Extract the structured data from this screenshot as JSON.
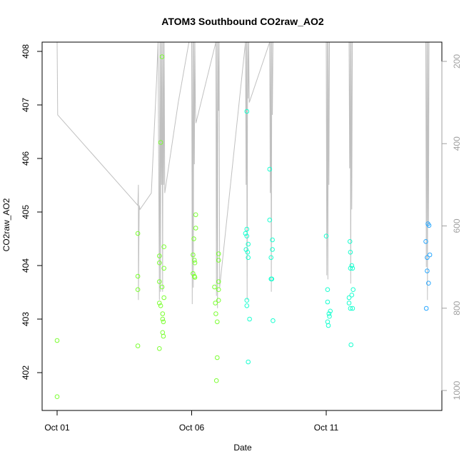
{
  "chart_data": {
    "type": "scatter",
    "title": "ATOM3 Southbound CO2raw_AO2",
    "xlabel": "Date",
    "ylabel": "CO2raw_AO2",
    "x_range_days": [
      0,
      14.0
    ],
    "ylim": [
      401.2,
      408.15
    ],
    "x_ticks": [
      {
        "day": 0,
        "label": "Oct 01"
      },
      {
        "day": 5,
        "label": "Oct 06"
      },
      {
        "day": 10,
        "label": "Oct 11"
      }
    ],
    "y_ticks": [
      402,
      403,
      404,
      405,
      406,
      407,
      408
    ],
    "y2_range": [
      143,
      1060
    ],
    "y2_ticks": [
      200,
      400,
      600,
      800,
      1000
    ],
    "grid": false,
    "colors": {
      "points_early": "#7cff33",
      "points_mid": "#1affd0",
      "points_late": "#2aa8ff",
      "pressure_trace": "#c0c0c0",
      "axis": "#000000",
      "right_axis": "#a0a0a0"
    },
    "points": [
      {
        "x": 0.0,
        "y": 402.6
      },
      {
        "x": 0.0,
        "y": 401.55
      },
      {
        "x": 3.0,
        "y": 404.6
      },
      {
        "x": 3.0,
        "y": 403.8
      },
      {
        "x": 3.0,
        "y": 403.55
      },
      {
        "x": 3.0,
        "y": 402.5
      },
      {
        "x": 3.8,
        "y": 404.18
      },
      {
        "x": 3.8,
        "y": 404.05
      },
      {
        "x": 3.8,
        "y": 403.7
      },
      {
        "x": 3.8,
        "y": 403.3
      },
      {
        "x": 3.8,
        "y": 402.45
      },
      {
        "x": 3.85,
        "y": 406.3
      },
      {
        "x": 3.85,
        "y": 403.25
      },
      {
        "x": 3.9,
        "y": 407.9
      },
      {
        "x": 3.9,
        "y": 403.6
      },
      {
        "x": 3.92,
        "y": 403.1
      },
      {
        "x": 3.92,
        "y": 403.0
      },
      {
        "x": 3.92,
        "y": 402.75
      },
      {
        "x": 3.95,
        "y": 402.95
      },
      {
        "x": 3.95,
        "y": 402.68
      },
      {
        "x": 3.97,
        "y": 404.35
      },
      {
        "x": 3.97,
        "y": 403.95
      },
      {
        "x": 3.97,
        "y": 403.4
      },
      {
        "x": 5.05,
        "y": 404.2
      },
      {
        "x": 5.05,
        "y": 403.85
      },
      {
        "x": 5.08,
        "y": 404.5
      },
      {
        "x": 5.1,
        "y": 404.1
      },
      {
        "x": 5.1,
        "y": 403.8
      },
      {
        "x": 5.12,
        "y": 404.05
      },
      {
        "x": 5.12,
        "y": 403.78
      },
      {
        "x": 5.15,
        "y": 404.95
      },
      {
        "x": 5.15,
        "y": 404.7
      },
      {
        "x": 5.85,
        "y": 403.6
      },
      {
        "x": 5.88,
        "y": 403.3
      },
      {
        "x": 5.9,
        "y": 403.1
      },
      {
        "x": 5.92,
        "y": 401.85
      },
      {
        "x": 5.95,
        "y": 402.28
      },
      {
        "x": 5.95,
        "y": 402.95
      },
      {
        "x": 6.0,
        "y": 404.1
      },
      {
        "x": 6.0,
        "y": 404.22
      },
      {
        "x": 6.0,
        "y": 403.7
      },
      {
        "x": 6.0,
        "y": 403.55
      },
      {
        "x": 6.0,
        "y": 403.35
      },
      {
        "x": 7.0,
        "y": 404.6
      },
      {
        "x": 7.02,
        "y": 404.3
      },
      {
        "x": 7.05,
        "y": 404.68
      },
      {
        "x": 7.05,
        "y": 404.55
      },
      {
        "x": 7.05,
        "y": 403.35
      },
      {
        "x": 7.05,
        "y": 403.25
      },
      {
        "x": 7.08,
        "y": 404.25
      },
      {
        "x": 7.1,
        "y": 404.4
      },
      {
        "x": 7.1,
        "y": 404.15
      },
      {
        "x": 7.05,
        "y": 406.88
      },
      {
        "x": 7.1,
        "y": 402.2
      },
      {
        "x": 7.15,
        "y": 403.0
      },
      {
        "x": 7.9,
        "y": 405.8
      },
      {
        "x": 7.9,
        "y": 404.85
      },
      {
        "x": 7.95,
        "y": 404.15
      },
      {
        "x": 7.95,
        "y": 403.75
      },
      {
        "x": 7.98,
        "y": 403.75
      },
      {
        "x": 8.0,
        "y": 404.48
      },
      {
        "x": 8.0,
        "y": 404.3
      },
      {
        "x": 8.02,
        "y": 402.97
      },
      {
        "x": 10.0,
        "y": 404.55
      },
      {
        "x": 10.05,
        "y": 403.32
      },
      {
        "x": 10.05,
        "y": 403.55
      },
      {
        "x": 10.05,
        "y": 402.95
      },
      {
        "x": 10.08,
        "y": 402.88
      },
      {
        "x": 10.1,
        "y": 403.1
      },
      {
        "x": 10.12,
        "y": 403.05
      },
      {
        "x": 10.15,
        "y": 403.15
      },
      {
        "x": 10.85,
        "y": 403.4
      },
      {
        "x": 10.85,
        "y": 403.3
      },
      {
        "x": 10.88,
        "y": 404.45
      },
      {
        "x": 10.9,
        "y": 404.25
      },
      {
        "x": 10.9,
        "y": 403.95
      },
      {
        "x": 10.9,
        "y": 403.2
      },
      {
        "x": 10.92,
        "y": 402.52
      },
      {
        "x": 10.95,
        "y": 404.0
      },
      {
        "x": 10.95,
        "y": 403.45
      },
      {
        "x": 10.98,
        "y": 403.95
      },
      {
        "x": 10.98,
        "y": 403.2
      },
      {
        "x": 11.0,
        "y": 403.55
      },
      {
        "x": 13.7,
        "y": 404.45
      },
      {
        "x": 13.72,
        "y": 403.2
      },
      {
        "x": 13.75,
        "y": 404.15
      },
      {
        "x": 13.75,
        "y": 403.9
      },
      {
        "x": 13.78,
        "y": 404.78
      },
      {
        "x": 13.8,
        "y": 403.67
      },
      {
        "x": 13.82,
        "y": 404.75
      },
      {
        "x": 13.85,
        "y": 404.2
      }
    ],
    "pressure_series": {
      "name": "",
      "x": [
        0,
        0.02,
        3.0,
        3.02,
        3.02,
        3.05,
        3.08,
        3.5,
        3.7,
        3.75,
        3.8,
        3.82,
        3.84,
        3.86,
        3.88,
        3.9,
        3.92,
        3.94,
        3.96,
        3.98,
        4.0,
        4.5,
        4.9,
        5.0,
        5.02,
        5.04,
        5.06,
        5.08,
        5.1,
        5.12,
        5.14,
        5.16,
        5.9,
        5.92,
        5.94,
        5.96,
        5.98,
        6.0,
        6.02,
        6.04,
        7.0,
        7.02,
        7.04,
        7.06,
        7.08,
        7.1,
        7.12,
        7.14,
        7.9,
        7.92,
        7.94,
        7.96,
        7.98,
        8.0,
        8.02,
        10.0,
        10.02,
        10.04,
        10.06,
        10.08,
        10.1,
        10.12,
        10.85,
        10.87,
        10.89,
        10.91,
        10.93,
        10.95,
        10.97,
        13.7,
        13.72,
        13.74,
        13.76,
        13.78,
        13.8,
        13.82
      ],
      "y": [
        143,
        330,
        550,
        500,
        780,
        550,
        560,
        520,
        240,
        143,
        780,
        143,
        760,
        143,
        500,
        143,
        760,
        143,
        500,
        143,
        520,
        300,
        143,
        143,
        790,
        143,
        750,
        143,
        450,
        143,
        320,
        350,
        143,
        770,
        143,
        800,
        143,
        320,
        143,
        750,
        143,
        500,
        143,
        780,
        143,
        290,
        143,
        300,
        143,
        520,
        143,
        760,
        143,
        330,
        143,
        143,
        720,
        143,
        730,
        143,
        500,
        143,
        143,
        460,
        143,
        740,
        143,
        560,
        143,
        143,
        700,
        143,
        780,
        143,
        600,
        143
      ]
    }
  }
}
